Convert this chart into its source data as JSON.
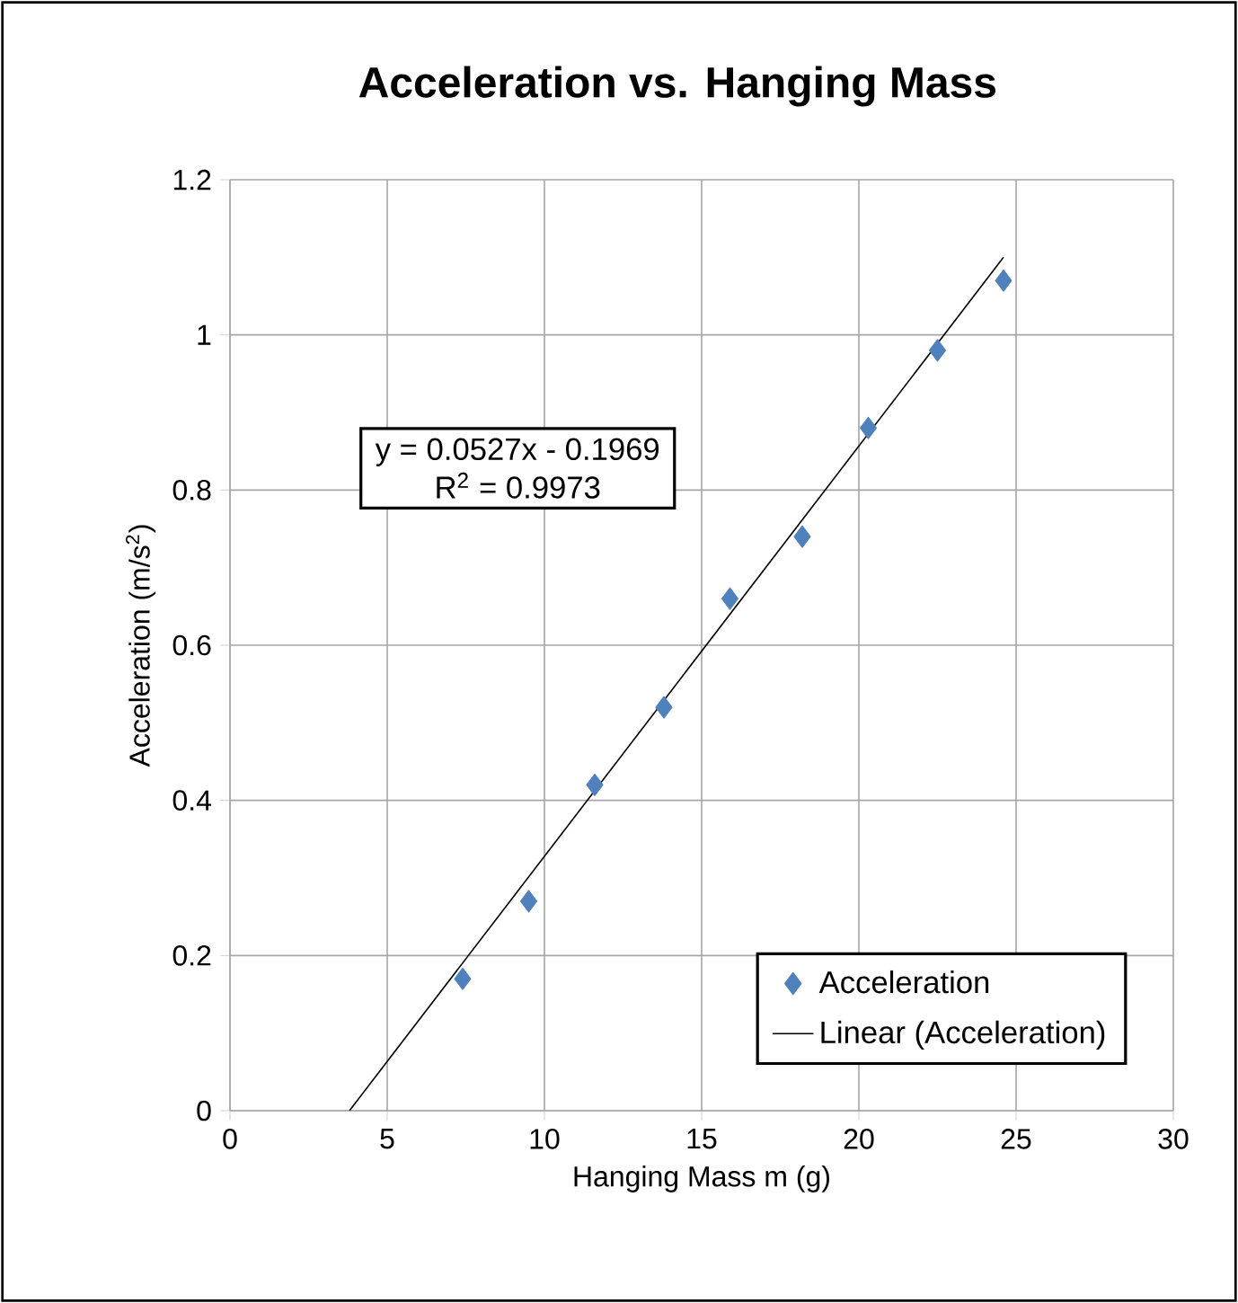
{
  "chart_data": {
    "type": "scatter",
    "title": "Acceleration vs. Hanging Mass",
    "xlabel": "Hanging Mass m (g)",
    "ylabel": "Acceleration (m/s$^{2}$)",
    "annotations": [
      "y = 0.0527x - 0.1969",
      "R$^{2}$ = 0.9973"
    ],
    "series": [
      {
        "name": "Acceleration",
        "color": "#4f81bd",
        "marker": "diamond",
        "x": [
          7.4,
          9.5,
          11.6,
          13.8,
          15.9,
          18.2,
          20.3,
          22.5,
          24.6
        ],
        "values": [
          0.17,
          0.27,
          0.42,
          0.52,
          0.66,
          0.74,
          0.88,
          0.98,
          1.07
        ]
      },
      {
        "name": "Linear (Acceleration)",
        "type": "line",
        "color": "#000000",
        "marker": "none",
        "line_style": "solid",
        "x": [
          3.8,
          24.6
        ],
        "values": [
          0.0,
          1.1
        ]
      }
    ],
    "xlim": [
      0,
      30
    ],
    "ylim": [
      0,
      1.2
    ],
    "xticks": [
      0,
      5,
      10,
      15,
      20,
      25,
      30
    ],
    "yticks": [
      0,
      0.2,
      0.4,
      0.6,
      0.8,
      1,
      1.2
    ],
    "grid": true,
    "legend": "bottom right"
  }
}
